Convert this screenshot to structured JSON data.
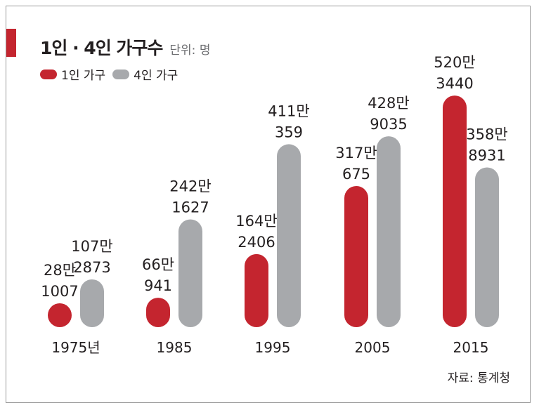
{
  "header": {
    "title": "1인 · 4인 가구수",
    "unit": "단위: 명"
  },
  "source": "자료: 통계청",
  "colors": {
    "accent": "#c4252f",
    "one_person": "#c4252f",
    "four_person": "#a7a9ac",
    "text": "#231f20",
    "unit_text": "#6d6e71"
  },
  "chart_data": {
    "type": "bar",
    "categories": [
      "1975년",
      "1985",
      "1995",
      "2005",
      "2015"
    ],
    "series": [
      {
        "name": "1인 가구",
        "values": [
          281007,
          660941,
          1642406,
          3170675,
          5203440
        ],
        "labels": [
          [
            "28만",
            "1007"
          ],
          [
            "66만",
            "941"
          ],
          [
            "164만",
            "2406"
          ],
          [
            "317만",
            "675"
          ],
          [
            "520만",
            "3440"
          ]
        ]
      },
      {
        "name": "4인 가구",
        "values": [
          1072873,
          2421627,
          4110359,
          4289035,
          3588931
        ],
        "labels": [
          [
            "107만",
            "2873"
          ],
          [
            "242만",
            "1627"
          ],
          [
            "411만",
            "359"
          ],
          [
            "428만",
            "9035"
          ],
          [
            "358만",
            "8931"
          ]
        ]
      }
    ],
    "legend": "top-left",
    "grid": false,
    "ylim": [
      0,
      5300000
    ]
  }
}
